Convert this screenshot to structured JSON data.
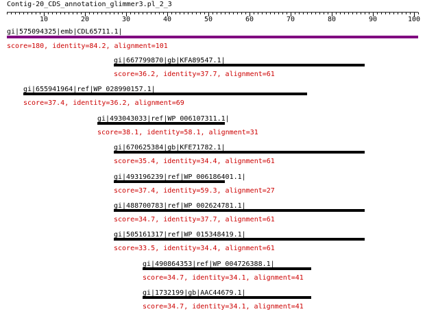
{
  "title": "Contig-20_CDS_annotation_glimmer3.pl_2_3",
  "axis": {
    "min": 1,
    "max": 101,
    "tick_labels": [
      "10",
      "20",
      "30",
      "40",
      "50",
      "60",
      "70",
      "80",
      "90",
      "100"
    ]
  },
  "colors": {
    "query_bar": "#800080",
    "hit_bar": "#000000",
    "score_text": "#cc0000",
    "label_text": "#000000",
    "axis": "#000000"
  },
  "query": {
    "label": "gi|575094325|emb|CDL65711.1|",
    "score_line": "score=180, identity=84.2, alignment=101",
    "start": 1,
    "end": 101
  },
  "hits": [
    {
      "label": "gi|667799870|gb|KFA89547.1|",
      "score_line": "score=36.2, identity=37.7, alignment=61",
      "start": 27,
      "end": 88
    },
    {
      "label": "gi|655941964|ref|WP_028990157.1|",
      "score_line": "score=37.4, identity=36.2, alignment=69",
      "start": 5,
      "end": 74
    },
    {
      "label": "gi|493043033|ref|WP_006107311.1|",
      "score_line": "score=38.1, identity=58.1, alignment=31",
      "start": 23,
      "end": 54
    },
    {
      "label": "gi|670625384|gb|KFE71782.1|",
      "score_line": "score=35.4, identity=34.4, alignment=61",
      "start": 27,
      "end": 88
    },
    {
      "label": "gi|493196239|ref|WP_006186401.1|",
      "score_line": "score=37.4, identity=59.3, alignment=27",
      "start": 27,
      "end": 54
    },
    {
      "label": "gi|488700783|ref|WP_002624781.1|",
      "score_line": "score=34.7, identity=37.7, alignment=61",
      "start": 27,
      "end": 88
    },
    {
      "label": "gi|505161317|ref|WP_015348419.1|",
      "score_line": "score=33.5, identity=34.4, alignment=61",
      "start": 27,
      "end": 88
    },
    {
      "label": "gi|490864353|ref|WP_004726388.1|",
      "score_line": "score=34.7, identity=34.1, alignment=41",
      "start": 34,
      "end": 75
    },
    {
      "label": "gi|1732199|gb|AAC44679.1|",
      "score_line": "score=34.7, identity=34.1, alignment=41",
      "start": 34,
      "end": 75
    }
  ]
}
